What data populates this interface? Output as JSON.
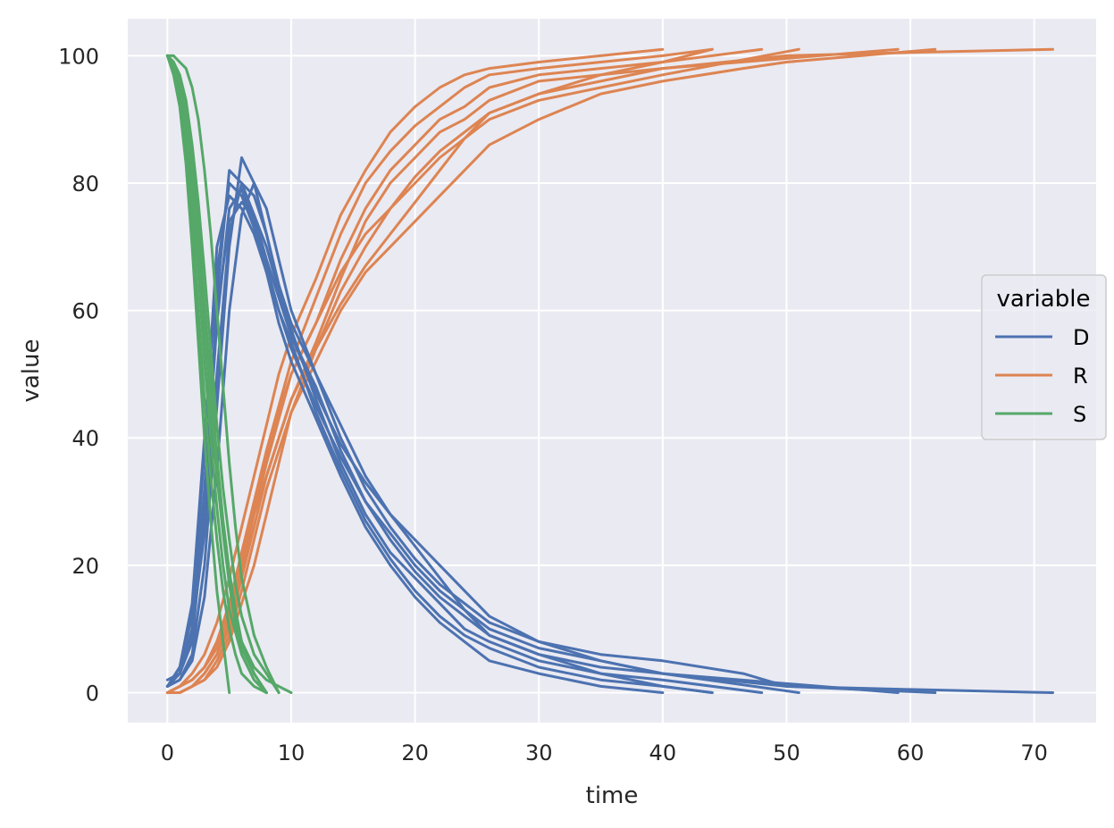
{
  "chart_data": {
    "type": "line",
    "title": "",
    "xlabel": "time",
    "ylabel": "value",
    "xlim": [
      -3.2,
      75
    ],
    "ylim": [
      -4.7,
      105.8
    ],
    "xticks": [
      0,
      10,
      20,
      30,
      40,
      50,
      60,
      70
    ],
    "yticks": [
      0,
      20,
      40,
      60,
      80,
      100
    ],
    "grid": true,
    "background": "#EAEAF2",
    "legend": {
      "title": "variable",
      "placement": "center-right",
      "entries": [
        "D",
        "R",
        "S"
      ]
    },
    "colors": {
      "D": "#4C72B0",
      "R": "#DD8452",
      "S": "#55A868"
    },
    "series": [
      {
        "group": "D",
        "x": [
          0,
          1,
          2,
          3,
          4,
          5,
          6,
          7,
          8,
          9,
          10,
          12,
          14,
          16,
          18,
          20,
          22,
          24,
          26,
          30,
          35,
          40,
          45,
          50,
          60,
          71.5
        ],
        "y": [
          1,
          3,
          8,
          28,
          62,
          82,
          80,
          75,
          68,
          62,
          56,
          48,
          38,
          30,
          24,
          19,
          15,
          12,
          9,
          6,
          4,
          3,
          2,
          1,
          0.5,
          0
        ]
      },
      {
        "group": "D",
        "x": [
          0,
          1,
          2,
          3,
          4,
          5,
          6,
          7,
          8,
          9,
          10,
          12,
          14,
          16,
          18,
          20,
          22,
          24,
          26,
          30,
          35,
          40,
          44
        ],
        "y": [
          1,
          4,
          12,
          38,
          70,
          78,
          76,
          72,
          66,
          60,
          55,
          44,
          35,
          27,
          21,
          16,
          12,
          9,
          7,
          4,
          2,
          1,
          0
        ]
      },
      {
        "group": "D",
        "x": [
          0,
          1,
          2,
          3,
          4,
          5,
          6,
          7,
          8,
          9,
          10,
          12,
          14,
          16,
          18,
          20,
          22,
          24,
          26,
          30,
          35,
          40,
          46.5,
          50,
          62
        ],
        "y": [
          2,
          3,
          10,
          25,
          50,
          72,
          80,
          78,
          72,
          64,
          58,
          50,
          42,
          34,
          28,
          24,
          20,
          16,
          12,
          8,
          6,
          5,
          3,
          1,
          0
        ]
      },
      {
        "group": "D",
        "x": [
          0,
          1,
          2,
          3,
          4,
          5,
          6,
          7,
          8,
          9,
          10,
          12,
          14,
          16,
          18,
          20,
          22,
          24,
          26,
          30,
          35,
          40,
          48
        ],
        "y": [
          1,
          2,
          6,
          20,
          45,
          70,
          84,
          80,
          72,
          64,
          57,
          46,
          36,
          28,
          22,
          18,
          14,
          10,
          8,
          5,
          3,
          2,
          0
        ]
      },
      {
        "group": "D",
        "x": [
          0,
          1,
          2,
          3,
          4,
          5,
          6,
          7,
          8,
          9,
          10,
          12,
          14,
          16,
          18,
          20,
          22,
          24,
          26,
          30,
          35,
          40,
          51
        ],
        "y": [
          1,
          3,
          9,
          30,
          58,
          76,
          79,
          74,
          67,
          60,
          54,
          45,
          37,
          30,
          25,
          20,
          16,
          13,
          10,
          7,
          5,
          3,
          0
        ]
      },
      {
        "group": "D",
        "x": [
          0,
          1,
          2,
          3,
          4,
          5,
          6,
          7,
          8,
          9,
          10,
          12,
          14,
          16,
          18,
          20,
          22,
          24,
          26,
          30,
          35,
          40,
          59
        ],
        "y": [
          1,
          2,
          5,
          15,
          35,
          60,
          75,
          80,
          76,
          68,
          60,
          50,
          40,
          32,
          26,
          21,
          17,
          14,
          11,
          8,
          5,
          3,
          0
        ]
      },
      {
        "group": "D",
        "x": [
          0,
          1,
          2,
          3,
          4,
          5,
          6,
          7,
          8,
          9,
          10,
          12,
          14,
          16,
          18,
          20,
          22,
          24,
          26,
          30,
          35,
          40
        ],
        "y": [
          1,
          4,
          14,
          40,
          66,
          80,
          78,
          73,
          66,
          58,
          52,
          43,
          34,
          26,
          20,
          15,
          11,
          8,
          5,
          3,
          1,
          0
        ]
      },
      {
        "group": "D",
        "x": [
          0,
          1,
          2,
          3,
          4,
          5,
          6,
          7,
          8,
          9,
          10,
          12,
          14,
          16,
          18,
          20,
          22,
          24,
          26,
          30,
          35,
          40,
          44
        ],
        "y": [
          1,
          3,
          10,
          32,
          60,
          74,
          77,
          75,
          70,
          63,
          56,
          47,
          39,
          33,
          28,
          23,
          18,
          13,
          9,
          6,
          3,
          1,
          0
        ]
      },
      {
        "group": "R",
        "x": [
          0,
          1,
          2,
          3,
          4,
          5,
          6,
          7,
          8,
          9,
          10,
          12,
          14,
          16,
          18,
          20,
          22,
          24,
          26,
          30,
          35,
          40,
          45,
          50,
          60,
          71.5
        ],
        "y": [
          0,
          0,
          1,
          3,
          6,
          10,
          18,
          26,
          34,
          40,
          46,
          55,
          65,
          74,
          80,
          84,
          88,
          90,
          93,
          96,
          97,
          98,
          99,
          100,
          100.5,
          101
        ]
      },
      {
        "group": "R",
        "x": [
          0,
          1,
          2,
          3,
          4,
          5,
          6,
          7,
          8,
          9,
          10,
          12,
          14,
          16,
          18,
          20,
          22,
          24,
          26,
          30,
          35,
          40,
          44
        ],
        "y": [
          0,
          1,
          2,
          4,
          8,
          14,
          22,
          30,
          38,
          45,
          52,
          62,
          72,
          80,
          85,
          89,
          92,
          95,
          97,
          98,
          99,
          100,
          101
        ]
      },
      {
        "group": "R",
        "x": [
          0,
          1,
          2,
          3,
          4,
          5,
          6,
          7,
          8,
          9,
          10,
          12,
          14,
          16,
          18,
          20,
          22,
          24,
          26,
          30,
          35,
          40,
          46.5,
          50,
          62
        ],
        "y": [
          0,
          0,
          1,
          2,
          5,
          9,
          16,
          24,
          32,
          38,
          44,
          52,
          60,
          66,
          70,
          74,
          78,
          82,
          86,
          90,
          94,
          96,
          98,
          99,
          101
        ]
      },
      {
        "group": "R",
        "x": [
          0,
          1,
          2,
          3,
          4,
          5,
          6,
          7,
          8,
          9,
          10,
          12,
          14,
          16,
          18,
          20,
          22,
          24,
          26,
          30,
          35,
          40,
          48
        ],
        "y": [
          0,
          0,
          1,
          3,
          6,
          11,
          19,
          28,
          36,
          43,
          50,
          58,
          68,
          76,
          82,
          86,
          90,
          92,
          95,
          97,
          98,
          99,
          101
        ]
      },
      {
        "group": "R",
        "x": [
          0,
          1,
          2,
          3,
          4,
          5,
          6,
          7,
          8,
          9,
          10,
          12,
          14,
          16,
          18,
          20,
          22,
          24,
          26,
          30,
          35,
          40,
          51
        ],
        "y": [
          0,
          1,
          2,
          4,
          7,
          12,
          20,
          29,
          37,
          44,
          50,
          58,
          66,
          72,
          76,
          80,
          84,
          87,
          90,
          93,
          95,
          97,
          101
        ]
      },
      {
        "group": "R",
        "x": [
          0,
          1,
          2,
          3,
          4,
          5,
          6,
          7,
          8,
          9,
          10,
          12,
          14,
          16,
          18,
          20,
          22,
          24,
          26,
          30,
          35,
          40,
          59
        ],
        "y": [
          0,
          0,
          1,
          2,
          4,
          8,
          14,
          20,
          28,
          36,
          44,
          54,
          63,
          70,
          76,
          81,
          85,
          88,
          91,
          94,
          96,
          98,
          101
        ]
      },
      {
        "group": "R",
        "x": [
          0,
          1,
          2,
          3,
          4,
          5,
          6,
          7,
          8,
          9,
          10,
          12,
          14,
          16,
          18,
          20,
          22,
          24,
          26,
          30,
          35,
          40
        ],
        "y": [
          0,
          1,
          3,
          6,
          11,
          18,
          26,
          34,
          42,
          50,
          56,
          65,
          75,
          82,
          88,
          92,
          95,
          97,
          98,
          99,
          100,
          101
        ]
      },
      {
        "group": "R",
        "x": [
          0,
          1,
          2,
          3,
          4,
          5,
          6,
          7,
          8,
          9,
          10,
          12,
          14,
          16,
          18,
          20,
          22,
          24,
          26,
          30,
          35,
          40,
          44
        ],
        "y": [
          0,
          1,
          2,
          4,
          8,
          13,
          21,
          28,
          34,
          40,
          46,
          54,
          61,
          67,
          72,
          77,
          82,
          87,
          91,
          94,
          97,
          99,
          101
        ]
      },
      {
        "group": "S",
        "x": [
          0,
          0.5,
          1,
          1.5,
          2,
          2.5,
          3,
          3.5,
          4,
          4.5,
          5,
          5.5,
          6,
          7,
          8,
          9,
          10
        ],
        "y": [
          100,
          99,
          96,
          90,
          82,
          72,
          60,
          48,
          36,
          26,
          18,
          12,
          8,
          4,
          2,
          1,
          0
        ]
      },
      {
        "group": "S",
        "x": [
          0,
          0.5,
          1,
          1.5,
          2,
          2.5,
          3,
          3.5,
          4,
          4.5,
          5,
          5.5,
          6,
          7,
          8
        ],
        "y": [
          100,
          98,
          94,
          86,
          74,
          60,
          46,
          34,
          24,
          16,
          10,
          6,
          3,
          1,
          0
        ]
      },
      {
        "group": "S",
        "x": [
          0,
          0.5,
          1,
          1.5,
          2,
          2.5,
          3,
          3.5,
          4,
          4.5,
          5,
          5.5,
          6,
          7,
          8,
          9
        ],
        "y": [
          100,
          99,
          97,
          93,
          86,
          77,
          66,
          54,
          42,
          32,
          24,
          17,
          12,
          6,
          3,
          0
        ]
      },
      {
        "group": "S",
        "x": [
          0,
          0.5,
          1,
          1.5,
          2,
          2.5,
          3,
          3.5,
          4,
          4.5,
          5,
          6,
          7,
          8
        ],
        "y": [
          100,
          99,
          95,
          88,
          78,
          66,
          52,
          40,
          29,
          20,
          13,
          6,
          2,
          0
        ]
      },
      {
        "group": "S",
        "x": [
          0,
          0.5,
          1,
          1.5,
          2,
          2.5,
          3,
          3.5,
          4,
          4.5,
          5,
          5.5,
          6,
          7,
          8
        ],
        "y": [
          100,
          98,
          95,
          89,
          80,
          69,
          57,
          45,
          34,
          25,
          17,
          11,
          7,
          3,
          0
        ]
      },
      {
        "group": "S",
        "x": [
          0,
          0.5,
          1,
          1.5,
          2,
          2.5,
          3,
          3.5,
          4,
          4.5,
          5,
          5.5,
          6,
          7,
          8,
          9
        ],
        "y": [
          100,
          100,
          99,
          98,
          95,
          90,
          82,
          72,
          60,
          48,
          36,
          26,
          18,
          9,
          4,
          0
        ]
      },
      {
        "group": "S",
        "x": [
          0,
          0.5,
          1,
          1.5,
          2,
          2.5,
          3,
          3.5,
          4,
          4.5,
          5
        ],
        "y": [
          100,
          97,
          92,
          83,
          70,
          55,
          40,
          27,
          16,
          8,
          0
        ]
      },
      {
        "group": "S",
        "x": [
          0,
          0.5,
          1,
          1.5,
          2,
          2.5,
          3,
          3.5,
          4,
          4.5,
          5,
          5.5,
          6,
          7,
          8
        ],
        "y": [
          100,
          99,
          96,
          91,
          83,
          73,
          61,
          49,
          37,
          27,
          19,
          13,
          8,
          3,
          0
        ]
      }
    ]
  }
}
